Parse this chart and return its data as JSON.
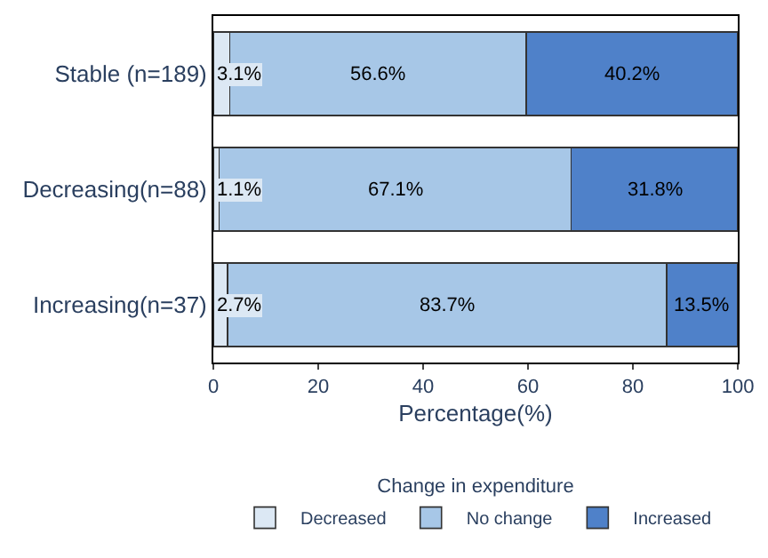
{
  "chart_data": {
    "type": "bar",
    "orientation": "horizontal",
    "stacked": true,
    "categories": [
      "Stable (n=189)",
      "Decreasing(n=88)",
      "Increasing(n=37)"
    ],
    "series": [
      {
        "name": "Decreased",
        "color": "#dce8f4",
        "values": [
          3.1,
          1.1,
          2.7
        ],
        "value_labels": [
          "3.1%",
          "1.1%",
          "2.7%"
        ]
      },
      {
        "name": "No change",
        "color": "#a7c7e7",
        "values": [
          56.6,
          67.1,
          83.7
        ],
        "value_labels": [
          "56.6%",
          "67.1%",
          "83.7%"
        ]
      },
      {
        "name": "Increased",
        "color": "#4f81c9",
        "values": [
          40.2,
          31.8,
          13.5
        ],
        "value_labels": [
          "40.2%",
          "31.8%",
          "13.5%"
        ]
      }
    ],
    "xlabel": "Percentage(%)",
    "legend_title": "Change in expenditure",
    "legend": "bottom",
    "xlim": [
      0,
      100
    ],
    "xticks": [
      0,
      20,
      40,
      60,
      80,
      100
    ]
  }
}
